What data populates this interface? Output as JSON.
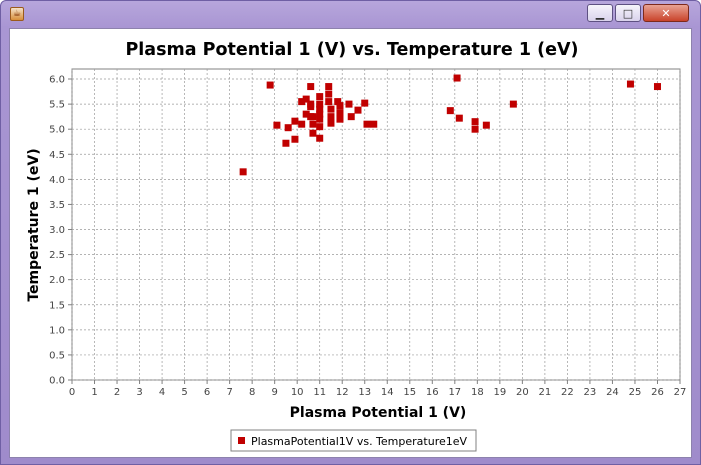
{
  "window": {
    "title": "",
    "app_icon": "java-icon",
    "controls": {
      "minimize": "▁",
      "maximize": "□",
      "close": "✕"
    }
  },
  "chart_data": {
    "type": "scatter",
    "title": "Plasma Potential 1 (V) vs. Temperature 1 (eV)",
    "xlabel": "Plasma Potential 1 (V)",
    "ylabel": "Temperature 1 (eV)",
    "xlim": [
      0,
      27
    ],
    "ylim": [
      0,
      6.2
    ],
    "xticks": [
      "0",
      "1",
      "2",
      "3",
      "4",
      "5",
      "6",
      "7",
      "8",
      "9",
      "10",
      "11",
      "12",
      "13",
      "14",
      "15",
      "16",
      "17",
      "18",
      "19",
      "20",
      "21",
      "22",
      "23",
      "24",
      "25",
      "26",
      "27"
    ],
    "yticks": [
      "0.0",
      "0.5",
      "1.0",
      "1.5",
      "2.0",
      "2.5",
      "3.0",
      "3.5",
      "4.0",
      "4.5",
      "5.0",
      "5.5",
      "6.0"
    ],
    "grid": true,
    "legend_position": "bottom",
    "marker_color": "#c00000",
    "series": [
      {
        "name": "PlasmaPotential1V vs. Temperature1eV",
        "x": [
          7.6,
          8.8,
          9.1,
          9.5,
          9.6,
          9.9,
          9.9,
          10.2,
          10.2,
          10.4,
          10.4,
          10.6,
          10.6,
          10.6,
          10.6,
          10.7,
          10.7,
          10.7,
          11.0,
          11.0,
          11.0,
          11.0,
          11.0,
          11.0,
          11.0,
          11.4,
          11.4,
          11.4,
          11.5,
          11.5,
          11.5,
          11.8,
          11.9,
          11.9,
          11.9,
          12.3,
          12.4,
          12.7,
          13.0,
          13.1,
          13.4,
          16.8,
          17.1,
          17.2,
          17.9,
          17.9,
          18.4,
          19.6,
          24.8,
          26.0
        ],
        "y": [
          4.15,
          5.88,
          5.08,
          4.72,
          5.03,
          4.8,
          5.16,
          5.55,
          5.1,
          5.3,
          5.6,
          5.85,
          5.5,
          5.25,
          5.45,
          5.1,
          5.25,
          4.92,
          5.65,
          5.5,
          5.4,
          5.3,
          5.2,
          5.05,
          4.82,
          5.85,
          5.7,
          5.55,
          5.4,
          5.25,
          5.12,
          5.55,
          5.47,
          5.33,
          5.2,
          5.5,
          5.25,
          5.38,
          5.52,
          5.1,
          5.1,
          5.37,
          6.02,
          5.22,
          5.15,
          5.0,
          5.08,
          5.5,
          5.9,
          5.85
        ]
      }
    ]
  }
}
